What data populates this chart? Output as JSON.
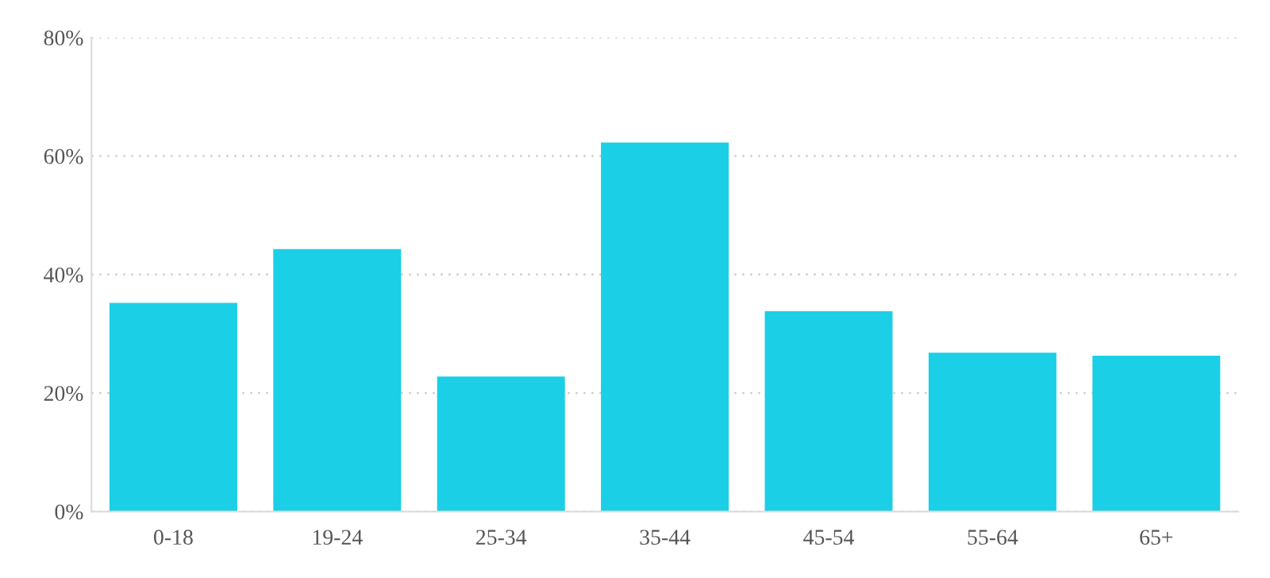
{
  "chart_data": {
    "type": "bar",
    "categories": [
      "0-18",
      "19-24",
      "25-34",
      "35-44",
      "45-54",
      "55-64",
      "65+"
    ],
    "values": [
      35.2,
      44.3,
      22.8,
      62.3,
      33.8,
      26.8,
      26.3
    ],
    "color": "#1bcfe6",
    "ylim": [
      0,
      80
    ],
    "yticks": [
      {
        "value": 0,
        "label": "0%"
      },
      {
        "value": 20,
        "label": "20%"
      },
      {
        "value": 40,
        "label": "40%"
      },
      {
        "value": 60,
        "label": "60%"
      },
      {
        "value": 80,
        "label": "80%"
      }
    ],
    "grid": "y"
  }
}
